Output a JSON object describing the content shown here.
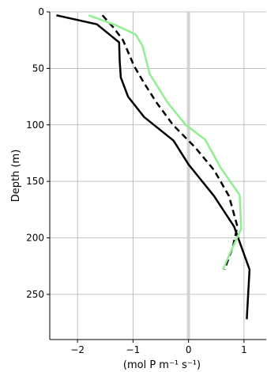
{
  "chart_data": {
    "type": "line",
    "title": "",
    "xlabel": "(mol P m⁻¹ s⁻¹)",
    "ylabel": "Depth (m)",
    "xlim": [
      -2.5,
      1.4
    ],
    "ylim": [
      290,
      0
    ],
    "y_inverted": true,
    "grid": true,
    "legend": "none",
    "xticks": [
      -2,
      -1,
      0,
      1
    ],
    "xtick_labels": [
      "−2",
      "−1",
      "0",
      "1"
    ],
    "yticks": [
      0,
      50,
      100,
      150,
      200,
      250
    ],
    "ytick_labels": [
      "0",
      "50",
      "100",
      "150",
      "200",
      "250"
    ],
    "zero_line": {
      "x": 0,
      "color": "#d3d3d3"
    },
    "series": [
      {
        "style": "solid",
        "color": "#000000",
        "points": [
          [
            -2.38,
            3
          ],
          [
            -1.65,
            11
          ],
          [
            -1.25,
            27
          ],
          [
            -1.24,
            43
          ],
          [
            -1.22,
            58
          ],
          [
            -1.09,
            75
          ],
          [
            -0.8,
            93
          ],
          [
            -0.27,
            114
          ],
          [
            0.0,
            135
          ],
          [
            0.46,
            163
          ],
          [
            0.82,
            190
          ],
          [
            1.1,
            228
          ],
          [
            1.05,
            272
          ]
        ]
      },
      {
        "style": "dashed",
        "color": "#000000",
        "points": [
          [
            -1.55,
            3
          ],
          [
            -1.35,
            14
          ],
          [
            -1.18,
            25
          ],
          [
            -0.98,
            48
          ],
          [
            -0.8,
            63
          ],
          [
            -0.58,
            80
          ],
          [
            -0.28,
            100
          ],
          [
            0.12,
            120
          ],
          [
            0.46,
            140
          ],
          [
            0.73,
            163
          ],
          [
            0.88,
            190
          ],
          [
            0.8,
            208
          ],
          [
            0.65,
            228
          ]
        ]
      },
      {
        "style": "solid",
        "color": "#90ee90",
        "points": [
          [
            -1.8,
            3
          ],
          [
            -1.3,
            12
          ],
          [
            -0.95,
            20
          ],
          [
            -0.83,
            30
          ],
          [
            -0.7,
            55
          ],
          [
            -0.38,
            80
          ],
          [
            -0.05,
            100
          ],
          [
            0.3,
            113
          ],
          [
            0.58,
            138
          ],
          [
            0.92,
            162
          ],
          [
            0.95,
            192
          ],
          [
            0.8,
            208
          ],
          [
            0.62,
            228
          ]
        ]
      }
    ]
  }
}
